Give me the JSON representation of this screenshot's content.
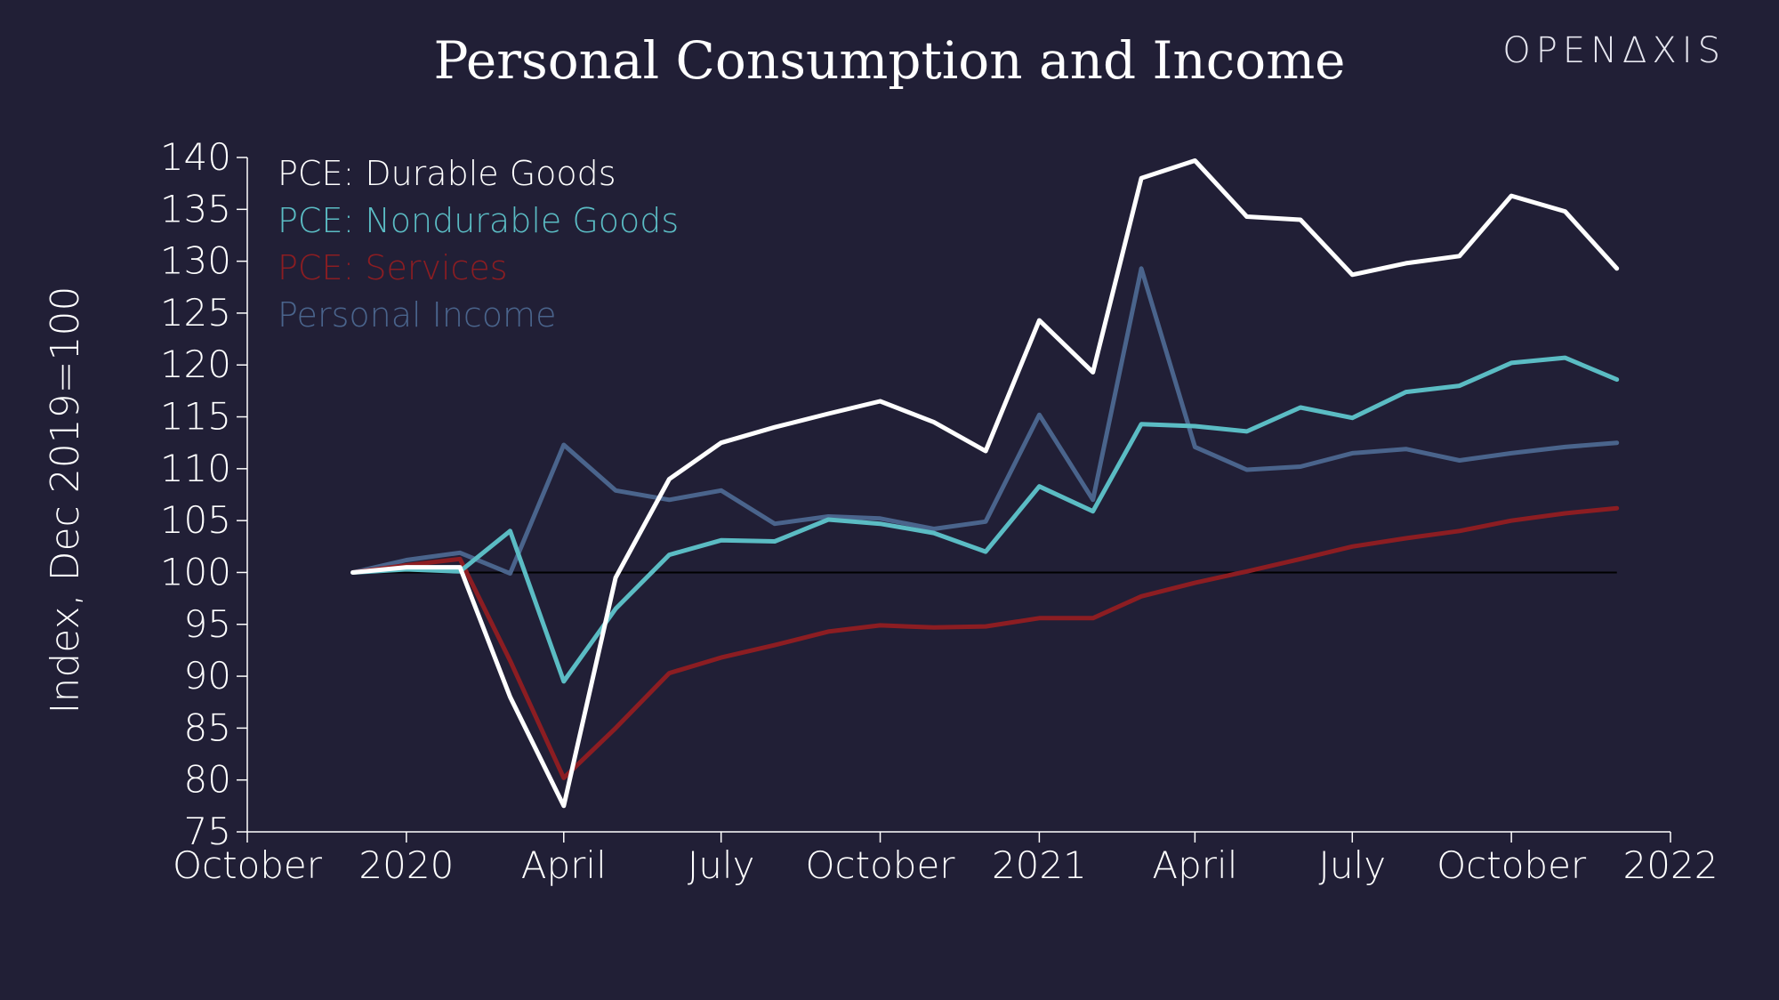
{
  "brand": "OPENΔXIS",
  "chart_data": {
    "type": "line",
    "title": "Personal Consumption and Income",
    "ylabel": "Index, Dec 2019=100",
    "xlabel": "",
    "ylim": [
      75,
      140
    ],
    "yticks": [
      75,
      80,
      85,
      90,
      95,
      100,
      105,
      110,
      115,
      120,
      125,
      130,
      135,
      140
    ],
    "xlim": [
      "2019-10-01",
      "2022-01-01"
    ],
    "xticks": [
      {
        "date": "2019-10-01",
        "label": "October"
      },
      {
        "date": "2020-01-01",
        "label": "2020"
      },
      {
        "date": "2020-04-01",
        "label": "April"
      },
      {
        "date": "2020-07-01",
        "label": "July"
      },
      {
        "date": "2020-10-01",
        "label": "October"
      },
      {
        "date": "2021-01-01",
        "label": "2021"
      },
      {
        "date": "2021-04-01",
        "label": "April"
      },
      {
        "date": "2021-07-01",
        "label": "July"
      },
      {
        "date": "2021-10-01",
        "label": "October"
      },
      {
        "date": "2022-01-01",
        "label": "2022"
      }
    ],
    "reference_line": 100,
    "legend_position": "top-left",
    "x": [
      "2019-12-01",
      "2020-01-01",
      "2020-02-01",
      "2020-03-01",
      "2020-04-01",
      "2020-05-01",
      "2020-06-01",
      "2020-07-01",
      "2020-08-01",
      "2020-09-01",
      "2020-10-01",
      "2020-11-01",
      "2020-12-01",
      "2021-01-01",
      "2021-02-01",
      "2021-03-01",
      "2021-04-01",
      "2021-05-01",
      "2021-06-01",
      "2021-07-01",
      "2021-08-01",
      "2021-09-01",
      "2021-10-01",
      "2021-11-01",
      "2021-12-01"
    ],
    "series": [
      {
        "name": "PCE: Durable Goods",
        "color": "#ffffff",
        "values": [
          100,
          100.5,
          100.5,
          88,
          77.5,
          99.5,
          109,
          112.5,
          114,
          115.3,
          116.5,
          114.5,
          111.7,
          124.3,
          119.3,
          138,
          139.7,
          134.3,
          134,
          128.7,
          129.8,
          130.5,
          136.3,
          134.8,
          129.3
        ]
      },
      {
        "name": "PCE: Nondurable Goods",
        "color": "#5bbcc4",
        "values": [
          100,
          100.3,
          100.1,
          104,
          89.5,
          96.5,
          101.7,
          103.1,
          103,
          105.1,
          104.7,
          103.8,
          102,
          108.3,
          105.9,
          114.3,
          114.1,
          113.6,
          115.9,
          114.9,
          117.4,
          118,
          120.2,
          120.7,
          118.6
        ]
      },
      {
        "name": "PCE: Services",
        "color": "#8c1d22",
        "values": [
          100,
          100.7,
          101.3,
          91.5,
          80.2,
          85,
          90.3,
          91.8,
          93,
          94.3,
          94.9,
          94.7,
          94.8,
          95.6,
          95.6,
          97.7,
          99,
          100.1,
          101.3,
          102.5,
          103.3,
          104,
          105,
          105.7,
          106.2
        ]
      },
      {
        "name": "Personal Income",
        "color": "#4a648c",
        "values": [
          100,
          101.2,
          101.9,
          99.9,
          112.3,
          107.9,
          107,
          107.9,
          104.7,
          105.4,
          105.2,
          104.2,
          104.9,
          115.2,
          107,
          129.3,
          112.1,
          109.9,
          110.2,
          111.5,
          111.9,
          110.8,
          111.5,
          112.1,
          112.5
        ]
      }
    ]
  }
}
